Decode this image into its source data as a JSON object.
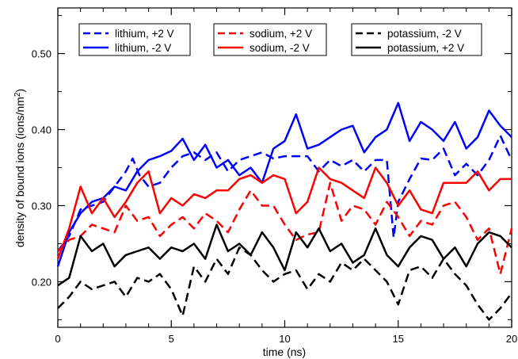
{
  "chart_data": {
    "type": "line",
    "xlabel": "time (ns)",
    "ylabel_prefix": "density of bound ions (ions/nm",
    "ylabel_sup": "2",
    "ylabel_suffix": ")",
    "xlim": [
      0,
      20
    ],
    "ylim": [
      0.14,
      0.56
    ],
    "xticks": [
      0,
      5,
      10,
      15,
      20
    ],
    "xtick_labels": [
      "0",
      "5",
      "10",
      "15",
      "20"
    ],
    "yticks": [
      0.2,
      0.3,
      0.4,
      0.5
    ],
    "ytick_labels": [
      "0.20",
      "0.30",
      "0.40",
      "0.50"
    ],
    "grid": false,
    "legend_position": "top",
    "series": [
      {
        "name": "lithium, +2 V",
        "color": "#0000ff",
        "dash": "dashed",
        "x": [
          0,
          0.5,
          1,
          1.5,
          2,
          2.5,
          3,
          3.3,
          3.6,
          4,
          4.5,
          5,
          5.5,
          6,
          6.5,
          7,
          7.5,
          8,
          8.5,
          9,
          9.5,
          10,
          10.5,
          11,
          11.5,
          12,
          12.5,
          13,
          13.5,
          14,
          14.5,
          14.8,
          15,
          15.5,
          16,
          16.5,
          17,
          17.5,
          18,
          18.5,
          19,
          19.5,
          20
        ],
        "values": [
          0.24,
          0.26,
          0.295,
          0.3,
          0.305,
          0.325,
          0.345,
          0.362,
          0.34,
          0.325,
          0.33,
          0.35,
          0.365,
          0.37,
          0.36,
          0.37,
          0.345,
          0.36,
          0.365,
          0.37,
          0.362,
          0.365,
          0.365,
          0.365,
          0.345,
          0.36,
          0.352,
          0.36,
          0.345,
          0.36,
          0.36,
          0.258,
          0.305,
          0.335,
          0.362,
          0.36,
          0.375,
          0.34,
          0.355,
          0.34,
          0.36,
          0.392,
          0.36
        ]
      },
      {
        "name": "lithium, -2 V",
        "color": "#0000ff",
        "dash": "solid",
        "x": [
          0,
          0.5,
          1,
          1.5,
          2,
          2.5,
          3,
          3.5,
          4,
          4.5,
          5,
          5.5,
          6,
          6.5,
          7,
          7.5,
          8,
          8.5,
          9,
          9.5,
          10,
          10.5,
          11,
          11.5,
          12,
          12.5,
          13,
          13.5,
          14,
          14.5,
          15,
          15.5,
          16,
          16.5,
          17,
          17.5,
          18,
          18.5,
          19,
          19.5,
          20
        ],
        "values": [
          0.22,
          0.265,
          0.29,
          0.305,
          0.31,
          0.325,
          0.32,
          0.345,
          0.36,
          0.365,
          0.372,
          0.388,
          0.36,
          0.38,
          0.35,
          0.36,
          0.34,
          0.35,
          0.33,
          0.375,
          0.385,
          0.42,
          0.375,
          0.38,
          0.39,
          0.4,
          0.405,
          0.37,
          0.39,
          0.4,
          0.435,
          0.385,
          0.41,
          0.4,
          0.385,
          0.41,
          0.375,
          0.39,
          0.425,
          0.405,
          0.39
        ]
      },
      {
        "name": "sodium, +2 V",
        "color": "#ff0000",
        "dash": "dashed",
        "x": [
          0,
          0.5,
          1,
          1.5,
          2,
          2.5,
          3,
          3.5,
          4,
          4.5,
          5,
          5.5,
          6,
          6.5,
          7,
          7.5,
          8,
          8.5,
          9,
          9.5,
          10,
          10.5,
          11,
          11.5,
          12,
          12.5,
          13,
          13.5,
          14,
          14.5,
          15,
          15.5,
          16,
          16.5,
          17,
          17.5,
          18,
          18.5,
          19,
          19.5,
          20
        ],
        "values": [
          0.24,
          0.255,
          0.26,
          0.275,
          0.27,
          0.265,
          0.3,
          0.28,
          0.285,
          0.26,
          0.275,
          0.285,
          0.27,
          0.29,
          0.28,
          0.265,
          0.295,
          0.32,
          0.3,
          0.3,
          0.275,
          0.255,
          0.262,
          0.265,
          0.33,
          0.28,
          0.3,
          0.295,
          0.275,
          0.305,
          0.285,
          0.26,
          0.28,
          0.275,
          0.3,
          0.305,
          0.285,
          0.255,
          0.27,
          0.21,
          0.27
        ]
      },
      {
        "name": "sodium, -2 V",
        "color": "#ff0000",
        "dash": "solid",
        "x": [
          0,
          0.5,
          1,
          1.5,
          2,
          2.5,
          3,
          3.5,
          4,
          4.5,
          5,
          5.5,
          6,
          6.5,
          7,
          7.5,
          8,
          8.5,
          9,
          9.5,
          10,
          10.5,
          11,
          11.5,
          12,
          12.5,
          13,
          13.5,
          14,
          14.5,
          15,
          15.5,
          16,
          16.5,
          17,
          17.5,
          18,
          18.5,
          19,
          19.5,
          20
        ],
        "values": [
          0.23,
          0.27,
          0.325,
          0.29,
          0.31,
          0.285,
          0.305,
          0.33,
          0.345,
          0.29,
          0.31,
          0.3,
          0.315,
          0.31,
          0.32,
          0.32,
          0.335,
          0.34,
          0.33,
          0.34,
          0.335,
          0.29,
          0.305,
          0.35,
          0.335,
          0.33,
          0.32,
          0.31,
          0.35,
          0.33,
          0.3,
          0.32,
          0.295,
          0.29,
          0.33,
          0.33,
          0.33,
          0.345,
          0.32,
          0.335,
          0.335
        ]
      },
      {
        "name": "potassium, -2 V",
        "color": "#000000",
        "dash": "dashed",
        "x": [
          0,
          0.5,
          1,
          1.5,
          2,
          2.5,
          3,
          3.5,
          4,
          4.5,
          5,
          5.5,
          6,
          6.5,
          7,
          7.5,
          8,
          8.5,
          9,
          9.5,
          10,
          10.5,
          11,
          11.5,
          12,
          12.5,
          13,
          13.5,
          14,
          14.5,
          15,
          15.5,
          16,
          16.5,
          17,
          17.5,
          18,
          18.5,
          19,
          19.5,
          20
        ],
        "values": [
          0.165,
          0.18,
          0.2,
          0.19,
          0.195,
          0.2,
          0.18,
          0.205,
          0.2,
          0.21,
          0.19,
          0.155,
          0.22,
          0.2,
          0.23,
          0.21,
          0.245,
          0.235,
          0.215,
          0.2,
          0.21,
          0.215,
          0.19,
          0.21,
          0.2,
          0.225,
          0.215,
          0.23,
          0.215,
          0.2,
          0.17,
          0.215,
          0.22,
          0.205,
          0.23,
          0.21,
          0.195,
          0.17,
          0.15,
          0.165,
          0.185
        ]
      },
      {
        "name": "potassium, +2 V",
        "color": "#000000",
        "dash": "solid",
        "x": [
          0,
          0.5,
          1,
          1.5,
          2,
          2.5,
          3,
          3.5,
          4,
          4.5,
          5,
          5.5,
          6,
          6.5,
          7,
          7.5,
          8,
          8.5,
          9,
          9.5,
          10,
          10.5,
          11,
          11.5,
          12,
          12.5,
          13,
          13.5,
          14,
          14.5,
          15,
          15.5,
          16,
          16.5,
          17,
          17.5,
          18,
          18.5,
          19,
          19.5,
          20
        ],
        "values": [
          0.195,
          0.205,
          0.26,
          0.24,
          0.25,
          0.22,
          0.235,
          0.24,
          0.245,
          0.23,
          0.245,
          0.24,
          0.25,
          0.23,
          0.275,
          0.24,
          0.25,
          0.235,
          0.265,
          0.245,
          0.215,
          0.265,
          0.245,
          0.27,
          0.24,
          0.25,
          0.225,
          0.235,
          0.27,
          0.235,
          0.22,
          0.245,
          0.26,
          0.255,
          0.23,
          0.245,
          0.22,
          0.25,
          0.265,
          0.26,
          0.245
        ]
      }
    ]
  }
}
